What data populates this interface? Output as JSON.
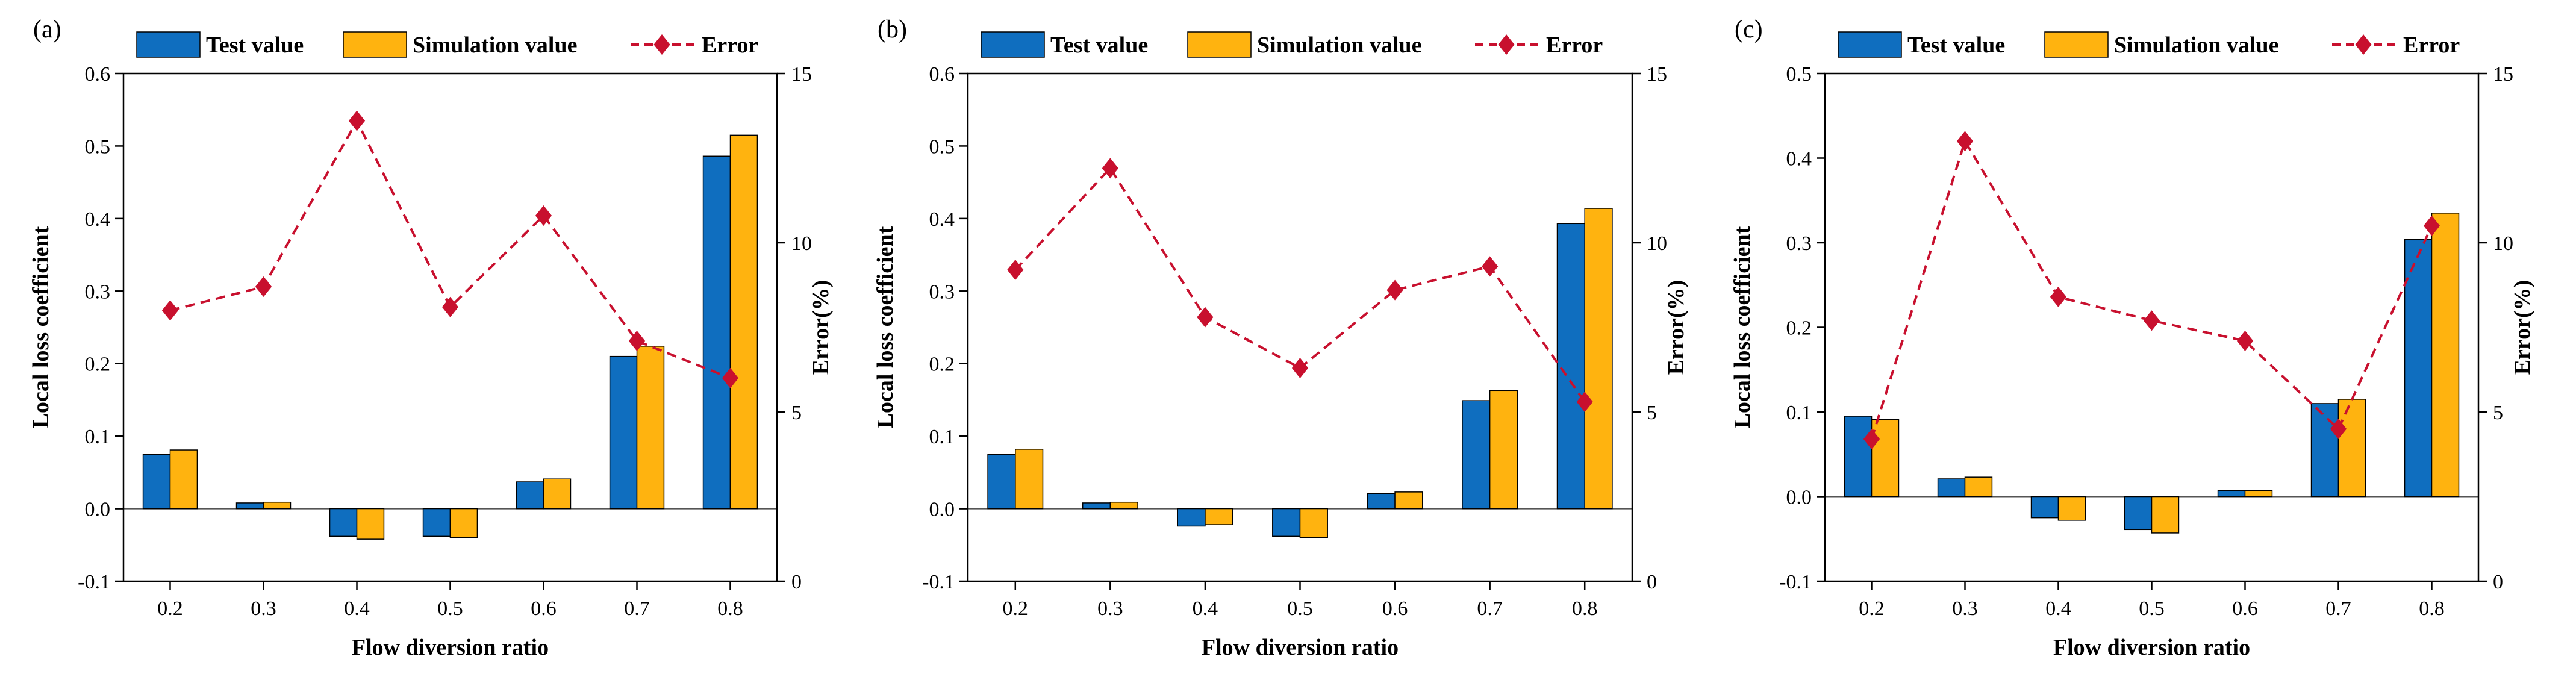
{
  "colors": {
    "test": "#0F6EBF",
    "simulation": "#FFB30F",
    "error": "#C8102E",
    "axis": "#000000"
  },
  "chart_data": [
    {
      "type": "bar",
      "panel_label": "(a)",
      "categories": [
        "0.2",
        "0.3",
        "0.4",
        "0.5",
        "0.6",
        "0.7",
        "0.8"
      ],
      "xlabel": "Flow diversion ratio",
      "ylabel": "Local loss coefficient",
      "y2label": "Error(%)",
      "ylim": [
        -0.1,
        0.6
      ],
      "yticks": [
        "-0.1",
        "0.0",
        "0.1",
        "0.2",
        "0.3",
        "0.4",
        "0.5",
        "0.6"
      ],
      "y2lim": [
        0,
        15
      ],
      "y2ticks": [
        "0",
        "5",
        "10",
        "15"
      ],
      "legend": [
        "Test value",
        "Simulation value",
        "Error"
      ],
      "legend_position": "top",
      "grid": false,
      "series": [
        {
          "name": "Test value",
          "type": "bar",
          "values": [
            0.075,
            0.008,
            -0.038,
            -0.038,
            0.037,
            0.21,
            0.486
          ]
        },
        {
          "name": "Simulation value",
          "type": "bar",
          "values": [
            0.081,
            0.009,
            -0.042,
            -0.04,
            0.041,
            0.224,
            0.515
          ]
        },
        {
          "name": "Error",
          "type": "line",
          "axis": "right",
          "values": [
            8.0,
            8.7,
            13.6,
            8.1,
            10.8,
            7.1,
            6.0
          ]
        }
      ]
    },
    {
      "type": "bar",
      "panel_label": "(b)",
      "categories": [
        "0.2",
        "0.3",
        "0.4",
        "0.5",
        "0.6",
        "0.7",
        "0.8"
      ],
      "xlabel": "Flow diversion ratio",
      "ylabel": "Local loss coefficient",
      "y2label": "Error(%)",
      "ylim": [
        -0.1,
        0.6
      ],
      "yticks": [
        "-0.1",
        "0.0",
        "0.1",
        "0.2",
        "0.3",
        "0.4",
        "0.5",
        "0.6"
      ],
      "y2lim": [
        0,
        15
      ],
      "y2ticks": [
        "0",
        "5",
        "10",
        "15"
      ],
      "legend": [
        "Test value",
        "Simulation value",
        "Error"
      ],
      "legend_position": "top",
      "grid": false,
      "series": [
        {
          "name": "Test value",
          "type": "bar",
          "values": [
            0.075,
            0.008,
            -0.024,
            -0.038,
            0.021,
            0.149,
            0.393
          ]
        },
        {
          "name": "Simulation value",
          "type": "bar",
          "values": [
            0.082,
            0.009,
            -0.022,
            -0.04,
            0.023,
            0.163,
            0.414
          ]
        },
        {
          "name": "Error",
          "type": "line",
          "axis": "right",
          "values": [
            9.2,
            12.2,
            7.8,
            6.3,
            8.6,
            9.3,
            5.3
          ]
        }
      ]
    },
    {
      "type": "bar",
      "panel_label": "(c)",
      "categories": [
        "0.2",
        "0.3",
        "0.4",
        "0.5",
        "0.6",
        "0.7",
        "0.8"
      ],
      "xlabel": "Flow diversion ratio",
      "ylabel": "Local loss coefficient",
      "y2label": "Error(%)",
      "ylim": [
        -0.1,
        0.5
      ],
      "yticks": [
        "-0.1",
        "0.0",
        "0.1",
        "0.2",
        "0.3",
        "0.4",
        "0.5"
      ],
      "y2lim": [
        0,
        15
      ],
      "y2ticks": [
        "0",
        "5",
        "10",
        "15"
      ],
      "legend": [
        "Test value",
        "Simulation value",
        "Error"
      ],
      "legend_position": "top",
      "grid": false,
      "series": [
        {
          "name": "Test value",
          "type": "bar",
          "values": [
            0.095,
            0.021,
            -0.025,
            -0.039,
            0.007,
            0.11,
            0.304
          ]
        },
        {
          "name": "Simulation value",
          "type": "bar",
          "values": [
            0.091,
            0.023,
            -0.028,
            -0.043,
            0.007,
            0.115,
            0.335
          ]
        },
        {
          "name": "Error",
          "type": "line",
          "axis": "right",
          "values": [
            4.2,
            13.0,
            8.4,
            7.7,
            7.1,
            4.5,
            10.5
          ]
        }
      ]
    }
  ]
}
